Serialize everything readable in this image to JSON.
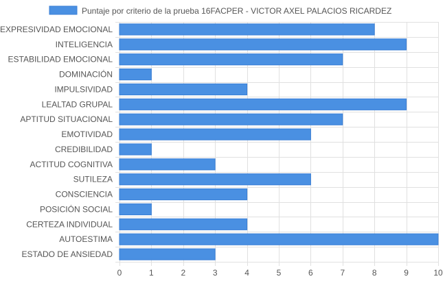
{
  "chart_data": {
    "type": "bar",
    "orientation": "horizontal",
    "legend": {
      "position": "top",
      "label": "Puntaje por criterio de la prueba 16FACPER - VICTOR AXEL PALACIOS RICARDEZ"
    },
    "categories": [
      "EXPRESIVIDAD EMOCIONAL",
      "INTELIGENCIA",
      "ESTABILIDAD EMOCIONAL",
      "DOMINACIÓN",
      "IMPULSIVIDAD",
      "LEALTAD GRUPAL",
      "APTITUD SITUACIONAL",
      "EMOTIVIDAD",
      "CREDIBILIDAD",
      "ACTITUD COGNITIVA",
      "SUTILEZA",
      "CONSCIENCIA",
      "POSICIÓN SOCIAL",
      "CERTEZA INDIVIDUAL",
      "AUTOESTIMA",
      "ESTADO DE ANSIEDAD"
    ],
    "series": [
      {
        "name": "Puntaje por criterio de la prueba 16FACPER - VICTOR AXEL PALACIOS RICARDEZ",
        "values": [
          8,
          9,
          7,
          1,
          4,
          9,
          7,
          6,
          1,
          3,
          6,
          4,
          1,
          4,
          10,
          3
        ],
        "color": "#4a90e2",
        "border_color": "#3a7fd6"
      }
    ],
    "xlim": [
      0,
      10
    ],
    "x_ticks": [
      0,
      1,
      2,
      3,
      4,
      5,
      6,
      7,
      8,
      9,
      10
    ],
    "grid": true,
    "grid_color": "#e0e0e0"
  }
}
